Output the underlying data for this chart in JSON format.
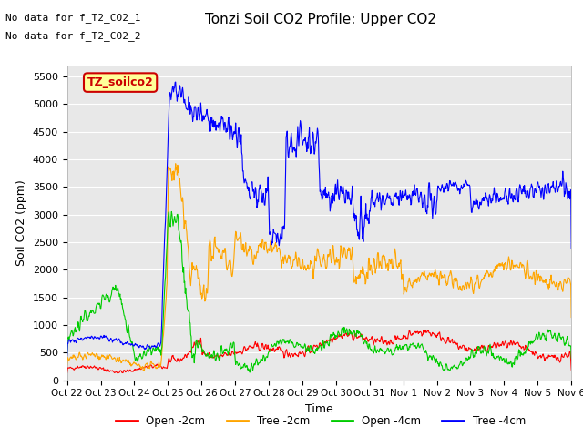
{
  "title": "Tonzi Soil CO2 Profile: Upper CO2",
  "xlabel": "Time",
  "ylabel": "Soil CO2 (ppm)",
  "ylim": [
    0,
    5700
  ],
  "yticks": [
    0,
    500,
    1000,
    1500,
    2000,
    2500,
    3000,
    3500,
    4000,
    4500,
    5000,
    5500
  ],
  "annotation1": "No data for f_T2_CO2_1",
  "annotation2": "No data for f_T2_CO2_2",
  "legend_label": "TZ_soilco2",
  "series_labels": [
    "Open -2cm",
    "Tree -2cm",
    "Open -4cm",
    "Tree -4cm"
  ],
  "series_colors": [
    "#ff0000",
    "#ffa500",
    "#00cc00",
    "#0000ff"
  ],
  "bg_color": "#e8e8e8",
  "grid_color": "#ffffff",
  "tick_labels": [
    "Oct 22",
    "Oct 23",
    "Oct 24",
    "Oct 25",
    "Oct 26",
    "Oct 27",
    "Oct 28",
    "Oct 29",
    "Oct 30",
    "Oct 31",
    "Nov 1",
    "Nov 2",
    "Nov 3",
    "Nov 4",
    "Nov 5",
    "Nov 6"
  ],
  "n_points": 1000
}
